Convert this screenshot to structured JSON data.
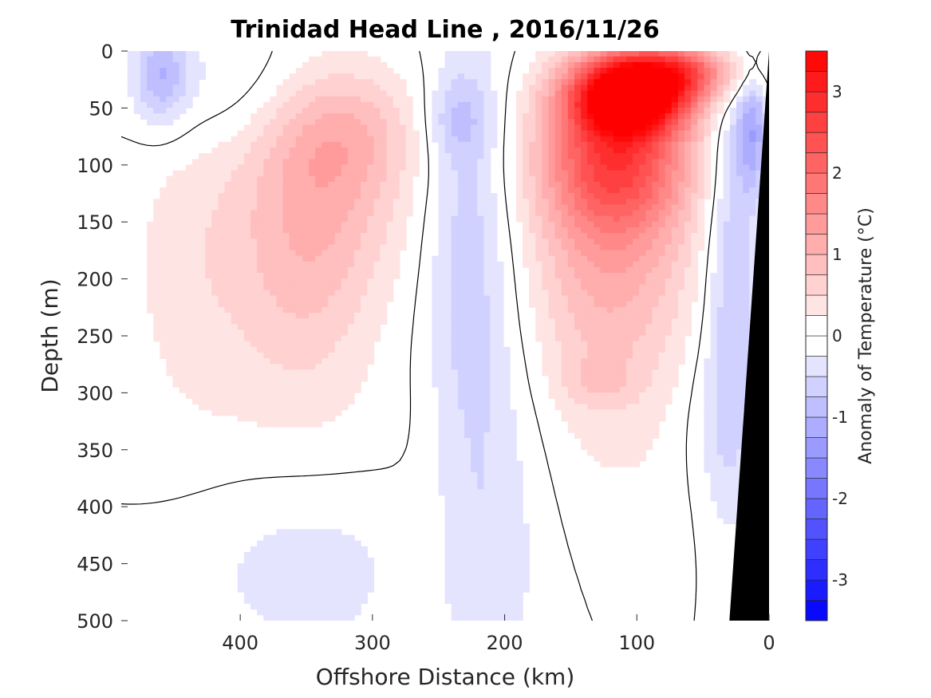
{
  "chart_data": {
    "type": "heatmap",
    "title": "Trinidad Head Line , 2016/11/26",
    "xlabel": "Offshore Distance (km)",
    "ylabel": "Depth (m)",
    "colorbar_label": "Anomaly of Temperature (°C)",
    "xlim": [
      490,
      0
    ],
    "ylim": [
      0,
      500
    ],
    "y_reversed": true,
    "x_ticks": [
      400,
      300,
      200,
      100,
      0
    ],
    "y_ticks": [
      0,
      50,
      100,
      150,
      200,
      250,
      300,
      350,
      400,
      450,
      500
    ],
    "clim": [
      -3.5,
      3.5
    ],
    "cbar_ticks": [
      3,
      2,
      1,
      0,
      -1,
      -2,
      -3
    ],
    "cbar_step": 0.25,
    "colormap": {
      "negative": "#0000ff",
      "zero": "#ffffff",
      "positive": "#ff0000"
    },
    "grid": false,
    "contour_levels": [
      0
    ],
    "bathymetry_color": "#000000",
    "features": [
      {
        "x": 460,
        "y": 20,
        "value": -0.9,
        "sx": 14,
        "sy": 30
      },
      {
        "x": 410,
        "y": 30,
        "value": -0.35,
        "sx": 50,
        "sy": 40
      },
      {
        "x": 340,
        "y": 120,
        "value": 0.9,
        "sx": 45,
        "sy": 70
      },
      {
        "x": 320,
        "y": 70,
        "value": 0.55,
        "sx": 40,
        "sy": 40
      },
      {
        "x": 355,
        "y": 230,
        "value": 0.5,
        "sx": 40,
        "sy": 70
      },
      {
        "x": 440,
        "y": 190,
        "value": 0.35,
        "sx": 35,
        "sy": 100
      },
      {
        "x": 228,
        "y": 150,
        "value": -0.6,
        "sx": 22,
        "sy": 140
      },
      {
        "x": 235,
        "y": 60,
        "value": -0.5,
        "sx": 15,
        "sy": 25
      },
      {
        "x": 210,
        "y": 400,
        "value": -0.4,
        "sx": 30,
        "sy": 160
      },
      {
        "x": 350,
        "y": 460,
        "value": -0.35,
        "sx": 65,
        "sy": 60
      },
      {
        "x": 105,
        "y": 40,
        "value": 3.3,
        "sx": 30,
        "sy": 22
      },
      {
        "x": 115,
        "y": 90,
        "value": 2.3,
        "sx": 40,
        "sy": 50
      },
      {
        "x": 70,
        "y": 18,
        "value": 1.9,
        "sx": 38,
        "sy": 18
      },
      {
        "x": 120,
        "y": 200,
        "value": 1.0,
        "sx": 45,
        "sy": 85
      },
      {
        "x": 130,
        "y": 290,
        "value": 0.35,
        "sx": 18,
        "sy": 14
      },
      {
        "x": 28,
        "y": 180,
        "value": -0.8,
        "sx": 14,
        "sy": 150
      },
      {
        "x": 12,
        "y": 70,
        "value": -1.1,
        "sx": 8,
        "sy": 40
      },
      {
        "x": 40,
        "y": 330,
        "value": -0.3,
        "sx": 22,
        "sy": 60
      },
      {
        "x": 350,
        "y": 330,
        "value": 0.1,
        "sx": 80,
        "sy": 40
      },
      {
        "x": 90,
        "y": 380,
        "value": 0.12,
        "sx": 60,
        "sy": 60
      },
      {
        "x": 260,
        "y": 440,
        "value": 0.12,
        "sx": 18,
        "sy": 50
      }
    ]
  }
}
